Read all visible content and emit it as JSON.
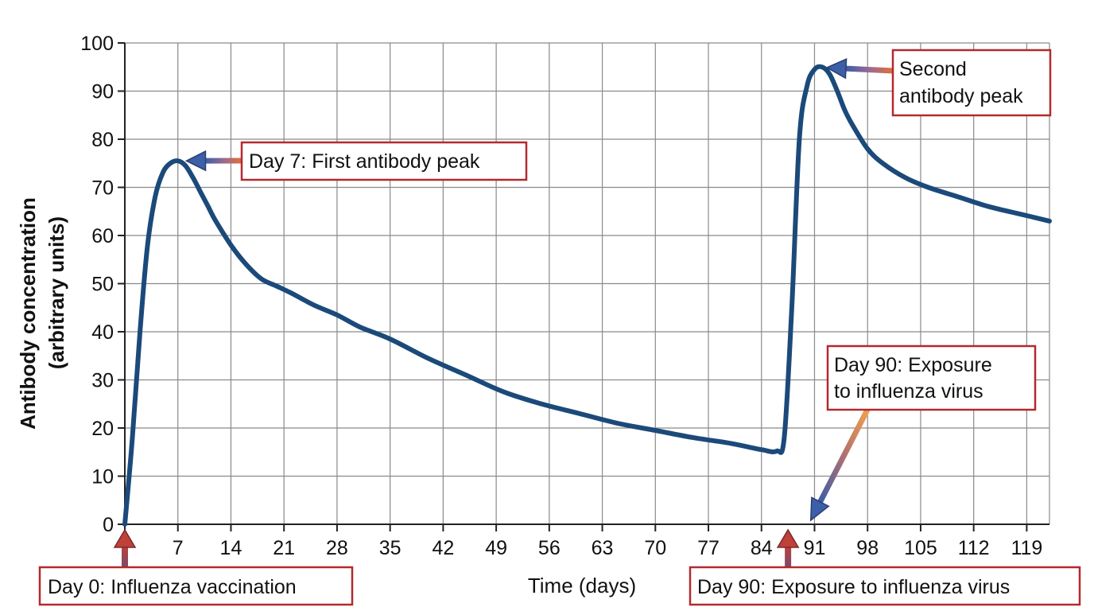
{
  "chart_data": {
    "type": "line",
    "title": "",
    "xlabel": "Time (days)",
    "ylabel": [
      "Antibody concentration",
      "(arbitrary units)"
    ],
    "xlim": [
      0,
      122
    ],
    "ylim": [
      0,
      100
    ],
    "x_ticks": [
      "",
      "7",
      "14",
      "21",
      "28",
      "35",
      "42",
      "49",
      "56",
      "63",
      "70",
      "77",
      "84",
      "91",
      "98",
      "105",
      "112",
      "119"
    ],
    "y_ticks": [
      "0",
      "10",
      "20",
      "30",
      "40",
      "50",
      "60",
      "70",
      "80",
      "90",
      "100"
    ],
    "grid": true,
    "line_color": "#1b4a7a",
    "annotation_border_color": "#b22a2e",
    "series": [
      {
        "x": [
          0,
          1,
          2,
          3,
          4,
          5,
          6,
          7,
          8,
          9,
          10,
          11,
          12,
          14,
          16,
          18,
          20,
          22,
          25,
          28,
          31,
          35,
          40,
          45,
          50,
          55,
          60,
          65,
          70,
          75,
          80,
          84,
          86,
          87,
          88,
          89,
          90,
          91,
          92,
          93,
          94,
          95,
          96,
          98,
          100,
          103,
          106,
          110,
          114,
          118,
          122
        ],
        "y": [
          0,
          18,
          40,
          58,
          68,
          73,
          75,
          75.5,
          74.5,
          72,
          69,
          66,
          63,
          58,
          54,
          51,
          49.5,
          48,
          45.5,
          43.5,
          41,
          38.5,
          34.5,
          31,
          27.5,
          25,
          23,
          21,
          19.5,
          18,
          16.8,
          15.5,
          15.2,
          18,
          45,
          80,
          91,
          94.5,
          95,
          93.5,
          90,
          86,
          83,
          78,
          75,
          72,
          70,
          68,
          66,
          64.5,
          63
        ]
      }
    ],
    "annotations": [
      {
        "lines": [
          "Day 7: First antibody peak"
        ],
        "target": [
          7.5,
          75.5
        ]
      },
      {
        "lines": [
          "Second",
          "antibody peak"
        ],
        "target": [
          92,
          95
        ]
      },
      {
        "lines": [
          "Day 90: Exposure",
          "to influenza virus"
        ],
        "target": [
          90.5,
          0.5
        ]
      },
      {
        "lines": [
          "Day 0: Influenza vaccination"
        ],
        "target": [
          0,
          0
        ]
      },
      {
        "lines": [
          "Day 90: Exposure to influenza virus"
        ],
        "target": [
          87.5,
          0
        ]
      }
    ]
  }
}
